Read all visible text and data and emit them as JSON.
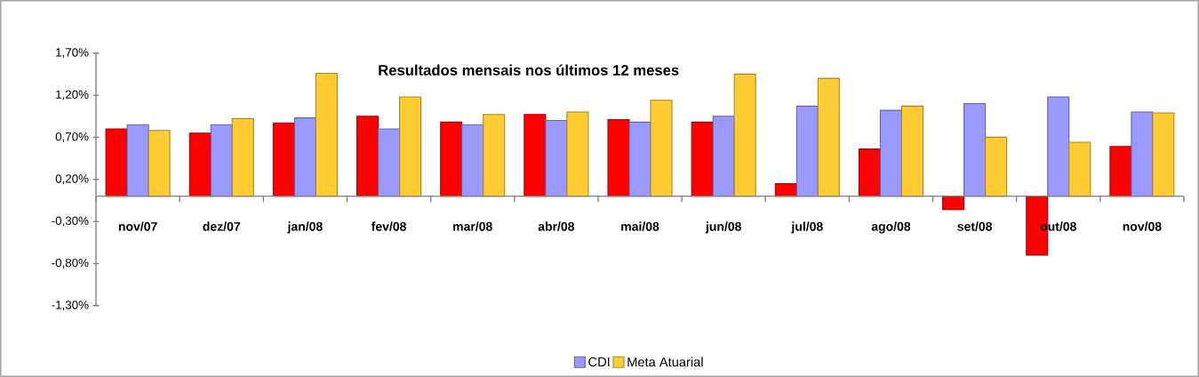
{
  "chart_data": {
    "type": "bar",
    "title": "Resultados mensais nos últimos 12 meses",
    "categories": [
      "nov/07",
      "dez/07",
      "jan/08",
      "fev/08",
      "mar/08",
      "abr/08",
      "mai/08",
      "jun/08",
      "jul/08",
      "ago/08",
      "set/08",
      "out/08",
      "nov/08"
    ],
    "series": [
      {
        "color": "#ff0000",
        "values": [
          0.8,
          0.75,
          0.87,
          0.95,
          0.88,
          0.97,
          0.91,
          0.88,
          0.15,
          0.56,
          -0.16,
          -0.7,
          0.59
        ]
      },
      {
        "name": "CDI",
        "color": "#9999ff",
        "values": [
          0.85,
          0.85,
          0.93,
          0.8,
          0.85,
          0.9,
          0.88,
          0.95,
          1.07,
          1.02,
          1.1,
          1.18,
          1.0
        ]
      },
      {
        "name": "Meta Atuarial",
        "color": "#ffcc33",
        "values": [
          0.78,
          0.92,
          1.46,
          1.18,
          0.97,
          1.0,
          1.14,
          1.45,
          1.4,
          1.07,
          0.7,
          0.64,
          0.99
        ]
      }
    ],
    "ylim": [
      -1.3,
      1.7
    ],
    "yticks": [
      {
        "value": -1.3,
        "label": "-1,30%"
      },
      {
        "value": -0.8,
        "label": "-0,80%"
      },
      {
        "value": -0.3,
        "label": "-0,30%"
      },
      {
        "value": 0.2,
        "label": "0,20%"
      },
      {
        "value": 0.7,
        "label": "0,70%"
      },
      {
        "value": 1.2,
        "label": "1,20%"
      },
      {
        "value": 1.7,
        "label": "1,70%"
      }
    ],
    "legend": "bottom"
  }
}
